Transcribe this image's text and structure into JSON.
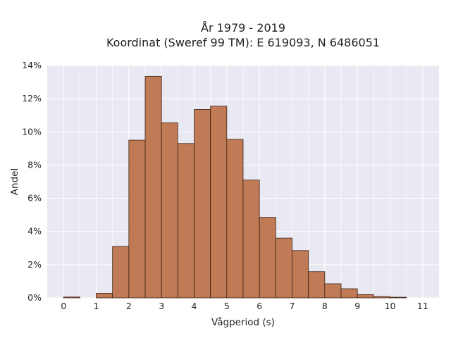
{
  "chart_data": {
    "type": "bar",
    "title_line1": "År 1979 - 2019",
    "title_line2": "Koordinat (Sweref 99 TM): E 619093, N 6486051",
    "xlabel": "Vågperiod (s)",
    "ylabel": "Andel",
    "xlim": [
      -0.5,
      11.5
    ],
    "ylim": [
      0,
      14
    ],
    "x_ticks": [
      "0",
      "1",
      "2",
      "3",
      "4",
      "5",
      "6",
      "7",
      "8",
      "9",
      "10",
      "11"
    ],
    "y_ticks": [
      "0%",
      "2%",
      "4%",
      "6%",
      "8%",
      "10%",
      "12%",
      "14%"
    ],
    "y_unit": "%",
    "bin_width": 0.5,
    "bins": [
      {
        "x0": 0.0,
        "value": 0.05
      },
      {
        "x0": 0.5,
        "value": 0.0
      },
      {
        "x0": 1.0,
        "value": 0.28
      },
      {
        "x0": 1.5,
        "value": 3.1
      },
      {
        "x0": 2.0,
        "value": 9.5
      },
      {
        "x0": 2.5,
        "value": 13.35
      },
      {
        "x0": 3.0,
        "value": 10.55
      },
      {
        "x0": 3.5,
        "value": 9.3
      },
      {
        "x0": 4.0,
        "value": 11.35
      },
      {
        "x0": 4.5,
        "value": 11.55
      },
      {
        "x0": 5.0,
        "value": 9.55
      },
      {
        "x0": 5.5,
        "value": 7.1
      },
      {
        "x0": 6.0,
        "value": 4.85
      },
      {
        "x0": 6.5,
        "value": 3.6
      },
      {
        "x0": 7.0,
        "value": 2.85
      },
      {
        "x0": 7.5,
        "value": 1.58
      },
      {
        "x0": 8.0,
        "value": 0.85
      },
      {
        "x0": 8.5,
        "value": 0.55
      },
      {
        "x0": 9.0,
        "value": 0.2
      },
      {
        "x0": 9.5,
        "value": 0.08
      },
      {
        "x0": 10.0,
        "value": 0.04
      }
    ],
    "bar_color": "#c07a55",
    "bar_edge_color": "#3a2218",
    "plot_background": "#e8e9f2",
    "grid": true
  }
}
